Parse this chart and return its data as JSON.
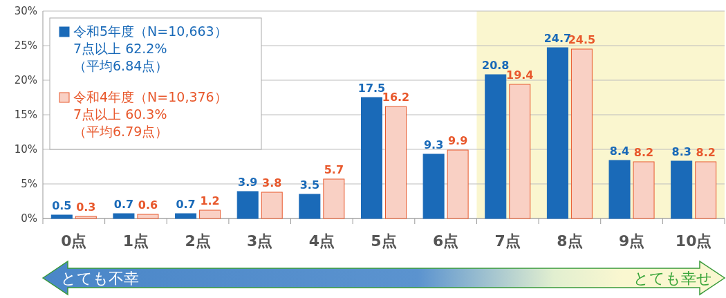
{
  "chart_data": {
    "type": "bar",
    "categories": [
      "0点",
      "1点",
      "2点",
      "3点",
      "4点",
      "5点",
      "6点",
      "7点",
      "8点",
      "9点",
      "10点"
    ],
    "series": [
      {
        "name": "令和5年度（N=10,663）\n 7点以上 62.2%\n（平均6.84点）",
        "color": "#1a6ab8",
        "values": [
          0.5,
          0.7,
          0.7,
          3.9,
          3.5,
          17.5,
          9.3,
          20.8,
          24.7,
          8.4,
          8.3
        ]
      },
      {
        "name": "令和4年度（N=10,376）\n 7点以上 60.3%\n（平均6.79点）",
        "color": "#e8582c",
        "values": [
          0.3,
          0.6,
          1.2,
          3.8,
          5.7,
          16.2,
          9.9,
          19.4,
          24.5,
          8.2,
          8.2
        ]
      }
    ],
    "ylim": [
      0,
      30
    ],
    "yticks": [
      {
        "value": 0,
        "label": "0%"
      },
      {
        "value": 5,
        "label": "5%"
      },
      {
        "value": 10,
        "label": "10%"
      },
      {
        "value": 15,
        "label": "15%"
      },
      {
        "value": 20,
        "label": "20%"
      },
      {
        "value": 25,
        "label": "25%"
      },
      {
        "value": 30,
        "label": "30%"
      }
    ],
    "bands": [
      {
        "axis": "x",
        "from": "7点",
        "to": "10点",
        "color": "#faf6cf"
      }
    ],
    "annotations": [
      "とても不幸",
      "とても幸せ"
    ],
    "data_labels": true,
    "grid": "y",
    "legend": "top left"
  }
}
